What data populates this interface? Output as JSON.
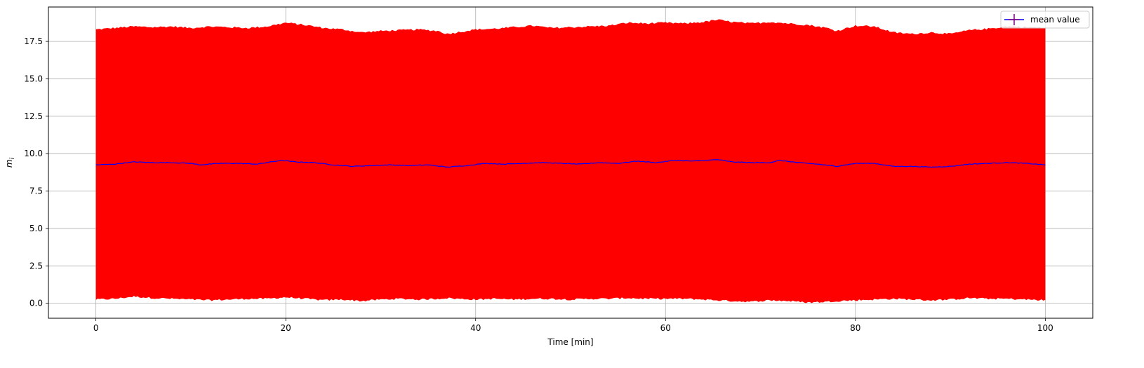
{
  "chart_data": {
    "type": "area",
    "xlabel": "Time [min]",
    "ylabel": "m",
    "ylabel_subscript": "i",
    "xlim": [
      -5,
      105
    ],
    "ylim": [
      -1,
      19.8
    ],
    "x_ticks": [
      0,
      20,
      40,
      60,
      80,
      100
    ],
    "x_tick_labels": [
      "0",
      "20",
      "40",
      "60",
      "80",
      "100"
    ],
    "y_ticks": [
      0,
      2.5,
      5,
      7.5,
      10,
      12.5,
      15,
      17.5
    ],
    "y_tick_labels": [
      "0.0",
      "2.5",
      "5.0",
      "7.5",
      "10.0",
      "12.5",
      "15.0",
      "17.5"
    ],
    "grid": true,
    "legend": {
      "placement": "upper right",
      "entries": [
        "mean value"
      ]
    },
    "colors": {
      "band": "#ff0000",
      "mean": "#0000ff",
      "mean_marker": "#800080"
    },
    "band": {
      "x": [
        0,
        2,
        4,
        6,
        8,
        10,
        12,
        14,
        16,
        18,
        20,
        22,
        24,
        26,
        28,
        30,
        32,
        34,
        36,
        37,
        38,
        40,
        42,
        44,
        46,
        48,
        50,
        52,
        54,
        56,
        58,
        60,
        62,
        64,
        65.5,
        67,
        69,
        71,
        73,
        75,
        77,
        78,
        80,
        82,
        84,
        86,
        88,
        90,
        92,
        94,
        96,
        98,
        100
      ],
      "upper": [
        18.3,
        18.4,
        18.5,
        18.45,
        18.5,
        18.4,
        18.5,
        18.45,
        18.4,
        18.5,
        18.75,
        18.6,
        18.4,
        18.3,
        18.1,
        18.2,
        18.25,
        18.3,
        18.2,
        18.0,
        18.1,
        18.3,
        18.35,
        18.45,
        18.55,
        18.4,
        18.45,
        18.5,
        18.55,
        18.75,
        18.7,
        18.75,
        18.7,
        18.8,
        18.95,
        18.8,
        18.7,
        18.8,
        18.7,
        18.6,
        18.4,
        18.2,
        18.55,
        18.5,
        18.1,
        18.0,
        18.1,
        18.0,
        18.25,
        18.35,
        18.5,
        18.45,
        18.4
      ],
      "lower": [
        0.25,
        0.3,
        0.45,
        0.35,
        0.3,
        0.25,
        0.2,
        0.25,
        0.3,
        0.3,
        0.4,
        0.3,
        0.2,
        0.25,
        0.15,
        0.25,
        0.3,
        0.25,
        0.3,
        0.35,
        0.3,
        0.25,
        0.3,
        0.25,
        0.3,
        0.3,
        0.25,
        0.3,
        0.3,
        0.35,
        0.3,
        0.3,
        0.3,
        0.25,
        0.2,
        0.15,
        0.1,
        0.2,
        0.15,
        0.05,
        0.1,
        0.15,
        0.2,
        0.25,
        0.3,
        0.25,
        0.2,
        0.25,
        0.35,
        0.3,
        0.3,
        0.25,
        0.2
      ]
    },
    "series": [
      {
        "name": "mean value",
        "x": [
          0,
          2,
          4,
          6,
          8,
          10,
          11,
          13,
          15,
          17,
          19.5,
          21,
          23,
          25,
          27,
          29,
          31,
          33,
          35,
          37,
          39,
          41,
          43,
          45,
          47,
          49,
          51,
          53,
          55,
          57,
          59,
          61,
          63,
          65.5,
          67,
          69,
          71,
          72,
          74,
          76,
          78,
          80,
          82,
          84,
          86,
          88,
          90,
          92,
          94,
          96,
          98,
          100
        ],
        "values": [
          9.25,
          9.3,
          9.45,
          9.4,
          9.4,
          9.35,
          9.25,
          9.35,
          9.35,
          9.3,
          9.55,
          9.45,
          9.4,
          9.25,
          9.15,
          9.2,
          9.25,
          9.2,
          9.25,
          9.1,
          9.2,
          9.35,
          9.3,
          9.35,
          9.4,
          9.35,
          9.3,
          9.4,
          9.35,
          9.5,
          9.4,
          9.55,
          9.5,
          9.6,
          9.45,
          9.4,
          9.4,
          9.55,
          9.4,
          9.3,
          9.15,
          9.35,
          9.35,
          9.15,
          9.15,
          9.1,
          9.15,
          9.3,
          9.35,
          9.4,
          9.35,
          9.25
        ]
      }
    ]
  }
}
